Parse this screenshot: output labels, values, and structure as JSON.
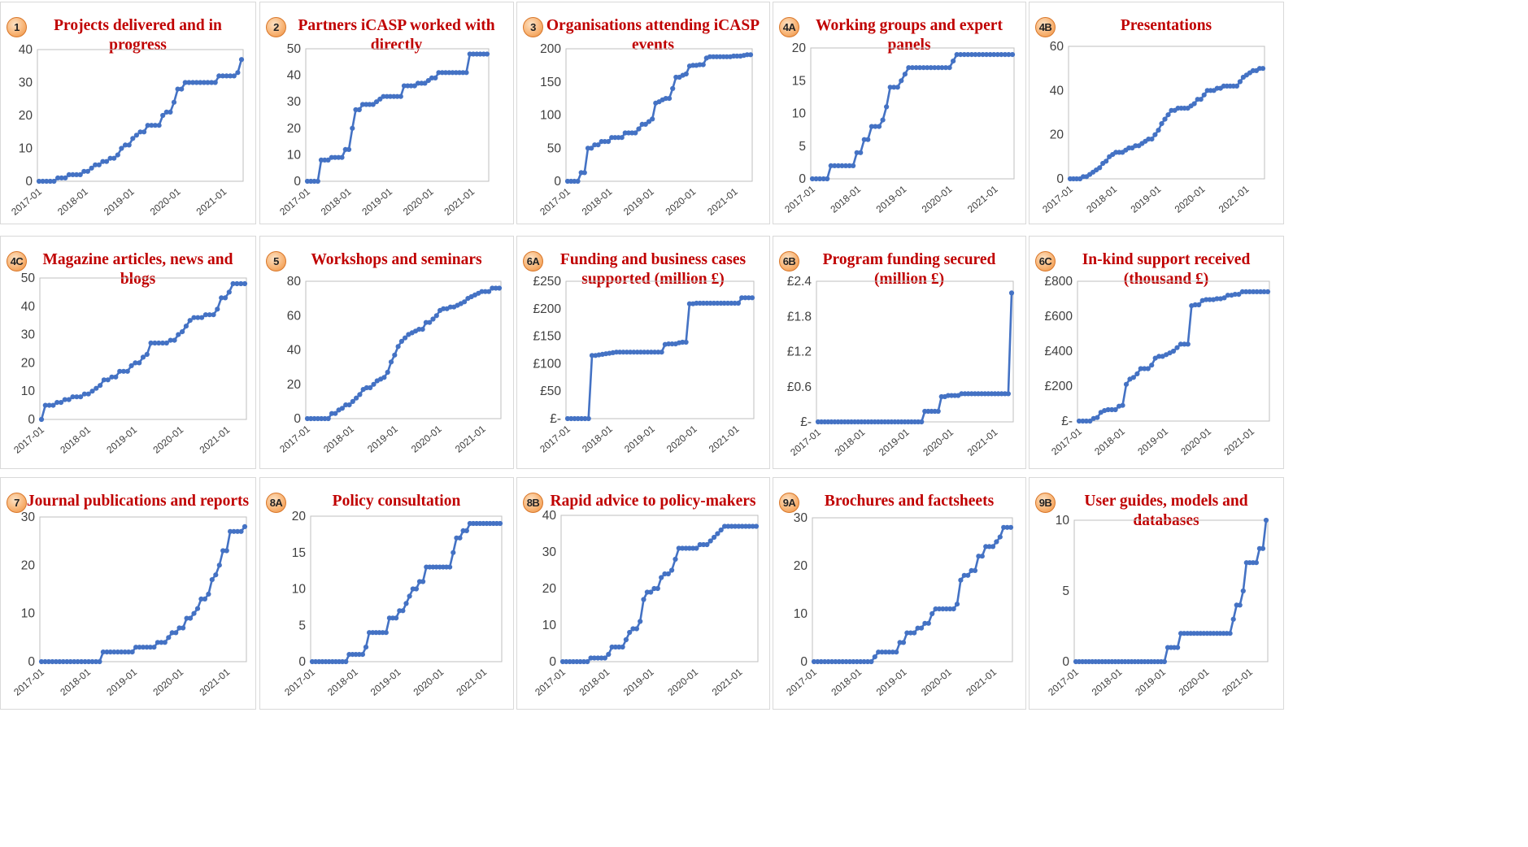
{
  "style": {
    "line_color": "#4472c4",
    "title_color": "#c00000",
    "badge_color": "#f4b183"
  },
  "x_tick_labels": [
    "2017-01",
    "2018-01",
    "2019-01",
    "2020-01",
    "2021-01"
  ],
  "chart_data": [
    {
      "id": "1",
      "title": "Projects delivered and in progress",
      "type": "line",
      "ylim": [
        0,
        40
      ],
      "yticks": [
        "0",
        "10",
        "20",
        "30",
        "40"
      ],
      "values": [
        0,
        0,
        0,
        0,
        0,
        1,
        1,
        1,
        2,
        2,
        2,
        2,
        3,
        3,
        4,
        5,
        5,
        6,
        6,
        7,
        7,
        8,
        10,
        11,
        11,
        13,
        14,
        15,
        15,
        17,
        17,
        17,
        17,
        20,
        21,
        21,
        24,
        28,
        28,
        30,
        30,
        30,
        30,
        30,
        30,
        30,
        30,
        30,
        32,
        32,
        32,
        32,
        32,
        33,
        37
      ]
    },
    {
      "id": "2",
      "title": "Partners iCASP worked with directly",
      "type": "line",
      "ylim": [
        0,
        50
      ],
      "yticks": [
        "0",
        "10",
        "20",
        "30",
        "40",
        "50"
      ],
      "values": [
        0,
        0,
        0,
        0,
        8,
        8,
        8,
        9,
        9,
        9,
        9,
        12,
        12,
        20,
        27,
        27,
        29,
        29,
        29,
        29,
        30,
        31,
        32,
        32,
        32,
        32,
        32,
        32,
        36,
        36,
        36,
        36,
        37,
        37,
        37,
        38,
        39,
        39,
        41,
        41,
        41,
        41,
        41,
        41,
        41,
        41,
        41,
        48,
        48,
        48,
        48,
        48,
        48
      ]
    },
    {
      "id": "3",
      "title": "Organisations attending iCASP events",
      "type": "line",
      "ylim": [
        0,
        200
      ],
      "yticks": [
        "0",
        "50",
        "100",
        "150",
        "200"
      ],
      "values": [
        0,
        0,
        0,
        0,
        13,
        13,
        50,
        50,
        55,
        55,
        60,
        60,
        60,
        66,
        66,
        66,
        66,
        73,
        73,
        73,
        73,
        79,
        86,
        86,
        90,
        94,
        118,
        120,
        123,
        125,
        125,
        140,
        157,
        157,
        160,
        162,
        174,
        175,
        175,
        176,
        176,
        186,
        188,
        188,
        188,
        188,
        188,
        188,
        188,
        189,
        189,
        189,
        190,
        191,
        191
      ]
    },
    {
      "id": "4A",
      "title": "Working groups and expert panels",
      "type": "line",
      "ylim": [
        0,
        20
      ],
      "yticks": [
        "0",
        "5",
        "10",
        "15",
        "20"
      ],
      "values": [
        0,
        0,
        0,
        0,
        0,
        2,
        2,
        2,
        2,
        2,
        2,
        2,
        4,
        4,
        6,
        6,
        8,
        8,
        8,
        9,
        11,
        14,
        14,
        14,
        15,
        16,
        17,
        17,
        17,
        17,
        17,
        17,
        17,
        17,
        17,
        17,
        17,
        17,
        18,
        19,
        19,
        19,
        19,
        19,
        19,
        19,
        19,
        19,
        19,
        19,
        19,
        19,
        19,
        19,
        19
      ]
    },
    {
      "id": "4B",
      "title": "Presentations",
      "type": "line",
      "ylim": [
        0,
        60
      ],
      "yticks": [
        "0",
        "20",
        "40",
        "60"
      ],
      "values": [
        0,
        0,
        0,
        0,
        1,
        1,
        2,
        3,
        4,
        5,
        7,
        8,
        10,
        11,
        12,
        12,
        12,
        13,
        14,
        14,
        15,
        15,
        16,
        17,
        18,
        18,
        20,
        22,
        25,
        27,
        29,
        31,
        31,
        32,
        32,
        32,
        32,
        33,
        34,
        36,
        36,
        38,
        40,
        40,
        40,
        41,
        41,
        42,
        42,
        42,
        42,
        42,
        44,
        46,
        47,
        48,
        49,
        49,
        50,
        50
      ]
    },
    {
      "id": "4C",
      "title": "Magazine articles, news and blogs",
      "type": "line",
      "ylim": [
        0,
        50
      ],
      "yticks": [
        "0",
        "10",
        "20",
        "30",
        "40",
        "50"
      ],
      "values": [
        0,
        5,
        5,
        5,
        6,
        6,
        7,
        7,
        8,
        8,
        8,
        9,
        9,
        10,
        11,
        12,
        14,
        14,
        15,
        15,
        17,
        17,
        17,
        19,
        20,
        20,
        22,
        23,
        27,
        27,
        27,
        27,
        27,
        28,
        28,
        30,
        31,
        33,
        35,
        36,
        36,
        36,
        37,
        37,
        37,
        39,
        43,
        43,
        45,
        48,
        48,
        48,
        48
      ]
    },
    {
      "id": "5",
      "title": "Workshops and seminars",
      "type": "line",
      "ylim": [
        0,
        80
      ],
      "yticks": [
        "0",
        "20",
        "40",
        "60",
        "80"
      ],
      "values": [
        0,
        0,
        0,
        0,
        0,
        0,
        0,
        3,
        3,
        5,
        6,
        8,
        8,
        10,
        12,
        14,
        17,
        18,
        18,
        20,
        22,
        23,
        24,
        27,
        33,
        37,
        42,
        45,
        47,
        49,
        50,
        51,
        52,
        52,
        56,
        56,
        58,
        60,
        63,
        64,
        64,
        65,
        65,
        66,
        67,
        68,
        70,
        71,
        72,
        73,
        74,
        74,
        74,
        76,
        76,
        76
      ]
    },
    {
      "id": "6A",
      "title": "Funding and business cases supported (million £)",
      "type": "line",
      "ylim": [
        0,
        250
      ],
      "yticks": [
        "£-",
        "£50",
        "£100",
        "£150",
        "£200",
        "£250"
      ],
      "values": [
        0,
        0,
        0,
        0,
        0,
        0,
        0,
        115,
        115,
        116,
        117,
        118,
        119,
        120,
        121,
        121,
        121,
        121,
        121,
        121,
        121,
        121,
        121,
        121,
        121,
        121,
        121,
        121,
        135,
        136,
        136,
        136,
        138,
        139,
        139,
        209,
        209,
        210,
        210,
        210,
        210,
        210,
        210,
        210,
        210,
        210,
        210,
        210,
        210,
        210,
        220,
        220,
        220,
        220
      ]
    },
    {
      "id": "6B",
      "title": "Program funding secured (million £)",
      "type": "line",
      "ylim": [
        0,
        2.4
      ],
      "yticks": [
        "£-",
        "£0.6",
        "£1.2",
        "£1.8",
        "£2.4"
      ],
      "values": [
        0,
        0,
        0,
        0,
        0,
        0,
        0,
        0,
        0,
        0,
        0,
        0,
        0,
        0,
        0,
        0,
        0,
        0,
        0,
        0,
        0,
        0,
        0,
        0,
        0,
        0,
        0,
        0,
        0,
        0,
        0,
        0,
        0.18,
        0.18,
        0.18,
        0.18,
        0.18,
        0.43,
        0.43,
        0.45,
        0.45,
        0.45,
        0.45,
        0.48,
        0.48,
        0.48,
        0.48,
        0.48,
        0.48,
        0.48,
        0.48,
        0.48,
        0.48,
        0.48,
        0.48,
        0.48,
        0.48,
        0.48,
        2.2
      ]
    },
    {
      "id": "6C",
      "title": "In-kind support received (thousand £)",
      "type": "line",
      "ylim": [
        0,
        800
      ],
      "yticks": [
        "£-",
        "£200",
        "£400",
        "£600",
        "£800"
      ],
      "values": [
        0,
        0,
        0,
        0,
        15,
        20,
        50,
        60,
        65,
        65,
        65,
        85,
        90,
        210,
        240,
        250,
        270,
        300,
        300,
        300,
        320,
        360,
        370,
        370,
        380,
        390,
        400,
        420,
        440,
        440,
        440,
        660,
        665,
        665,
        690,
        695,
        695,
        695,
        700,
        700,
        705,
        720,
        720,
        725,
        725,
        740,
        740,
        740,
        740,
        740,
        740,
        740,
        740
      ]
    },
    {
      "id": "7",
      "title": "Journal publications and reports",
      "type": "line",
      "ylim": [
        0,
        30
      ],
      "yticks": [
        "0",
        "10",
        "20",
        "30"
      ],
      "values": [
        0,
        0,
        0,
        0,
        0,
        0,
        0,
        0,
        0,
        0,
        0,
        0,
        0,
        0,
        0,
        0,
        0,
        2,
        2,
        2,
        2,
        2,
        2,
        2,
        2,
        2,
        3,
        3,
        3,
        3,
        3,
        3,
        4,
        4,
        4,
        5,
        6,
        6,
        7,
        7,
        9,
        9,
        10,
        11,
        13,
        13,
        14,
        17,
        18,
        20,
        23,
        23,
        27,
        27,
        27,
        27,
        28
      ]
    },
    {
      "id": "8A",
      "title": "Policy consultation",
      "type": "line",
      "ylim": [
        0,
        20
      ],
      "yticks": [
        "0",
        "5",
        "10",
        "15",
        "20"
      ],
      "values": [
        0,
        0,
        0,
        0,
        0,
        0,
        0,
        0,
        0,
        0,
        0,
        1,
        1,
        1,
        1,
        1,
        2,
        4,
        4,
        4,
        4,
        4,
        4,
        6,
        6,
        6,
        7,
        7,
        8,
        9,
        10,
        10,
        11,
        11,
        13,
        13,
        13,
        13,
        13,
        13,
        13,
        13,
        15,
        17,
        17,
        18,
        18,
        19,
        19,
        19,
        19,
        19,
        19,
        19,
        19,
        19,
        19
      ]
    },
    {
      "id": "8B",
      "title": "Rapid advice to policy-makers",
      "type": "line",
      "ylim": [
        0,
        40
      ],
      "yticks": [
        "0",
        "10",
        "20",
        "30",
        "40"
      ],
      "values": [
        0,
        0,
        0,
        0,
        0,
        0,
        0,
        0,
        1,
        1,
        1,
        1,
        1,
        2,
        4,
        4,
        4,
        4,
        6,
        8,
        9,
        9,
        11,
        17,
        19,
        19,
        20,
        20,
        23,
        24,
        24,
        25,
        28,
        31,
        31,
        31,
        31,
        31,
        31,
        32,
        32,
        32,
        33,
        34,
        35,
        36,
        37,
        37,
        37,
        37,
        37,
        37,
        37,
        37,
        37,
        37
      ]
    },
    {
      "id": "9A",
      "title": "Brochures and factsheets",
      "type": "line",
      "ylim": [
        0,
        30
      ],
      "yticks": [
        "0",
        "10",
        "20",
        "30"
      ],
      "values": [
        0,
        0,
        0,
        0,
        0,
        0,
        0,
        0,
        0,
        0,
        0,
        0,
        0,
        0,
        0,
        0,
        0,
        1,
        2,
        2,
        2,
        2,
        2,
        2,
        4,
        4,
        6,
        6,
        6,
        7,
        7,
        8,
        8,
        10,
        11,
        11,
        11,
        11,
        11,
        11,
        12,
        17,
        18,
        18,
        19,
        19,
        22,
        22,
        24,
        24,
        24,
        25,
        26,
        28,
        28,
        28
      ]
    },
    {
      "id": "9B",
      "title": "User guides, models and databases",
      "type": "line",
      "ylim": [
        0,
        10
      ],
      "yticks": [
        "0",
        "5",
        "10"
      ],
      "values": [
        0,
        0,
        0,
        0,
        0,
        0,
        0,
        0,
        0,
        0,
        0,
        0,
        0,
        0,
        0,
        0,
        0,
        0,
        0,
        0,
        0,
        0,
        0,
        0,
        0,
        0,
        0,
        0,
        1,
        1,
        1,
        1,
        2,
        2,
        2,
        2,
        2,
        2,
        2,
        2,
        2,
        2,
        2,
        2,
        2,
        2,
        2,
        2,
        3,
        4,
        4,
        5,
        7,
        7,
        7,
        7,
        8,
        8,
        10
      ]
    }
  ]
}
